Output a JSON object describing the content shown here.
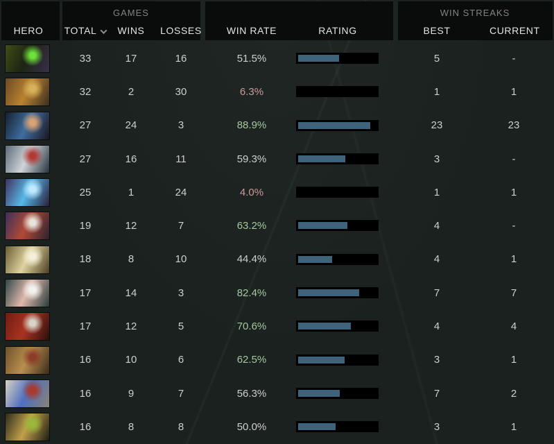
{
  "header": {
    "hero_label": "HERO",
    "games": {
      "group": "GAMES",
      "total": "TOTAL",
      "wins": "WINS",
      "losses": "LOSSES",
      "sort_icon": "caret-down"
    },
    "rate": {
      "win_rate": "WIN RATE",
      "rating": "RATING"
    },
    "streaks": {
      "group": "WIN STREAKS",
      "best": "BEST",
      "current": "CURRENT"
    }
  },
  "colors": {
    "background": "#1a211f",
    "header_block": "#0a0b0b",
    "bar_track": "#000000",
    "bar_fill": "#40637c",
    "win_rate_green": "#a6c89e",
    "win_rate_red": "#cb9b9b",
    "text_neutral": "#cdd0cd"
  },
  "rows": [
    {
      "hero_icon": "hero-portrait-1",
      "total": "33",
      "wins": "17",
      "losses": "16",
      "win_rate": "51.5%",
      "win_rate_tone": "neutral",
      "rating_pct": 52,
      "best": "5",
      "current": "-",
      "portrait": [
        "#3f4d17",
        "#1d2413",
        "#3a2f4a",
        "#6ee03a"
      ]
    },
    {
      "hero_icon": "hero-portrait-2",
      "total": "32",
      "wins": "2",
      "losses": "30",
      "win_rate": "6.3%",
      "win_rate_tone": "red",
      "rating_pct": 0,
      "best": "1",
      "current": "1",
      "portrait": [
        "#6b4a26",
        "#b9822f",
        "#3a2d20",
        "#d8b25a"
      ]
    },
    {
      "hero_icon": "hero-portrait-3",
      "total": "27",
      "wins": "24",
      "losses": "3",
      "win_rate": "88.9%",
      "win_rate_tone": "green",
      "rating_pct": 92,
      "best": "23",
      "current": "23",
      "portrait": [
        "#16202e",
        "#3f6e9e",
        "#1a1420",
        "#d9a273"
      ]
    },
    {
      "hero_icon": "hero-portrait-4",
      "total": "27",
      "wins": "16",
      "losses": "11",
      "win_rate": "59.3%",
      "win_rate_tone": "neutral",
      "rating_pct": 60,
      "best": "3",
      "current": "-",
      "portrait": [
        "#5d6b78",
        "#cfd4d8",
        "#23303c",
        "#b03a36"
      ]
    },
    {
      "hero_icon": "hero-portrait-5",
      "total": "25",
      "wins": "1",
      "losses": "24",
      "win_rate": "4.0%",
      "win_rate_tone": "red",
      "rating_pct": 0,
      "best": "1",
      "current": "1",
      "portrait": [
        "#40325e",
        "#57b8e8",
        "#2a1c38",
        "#bfeaff"
      ]
    },
    {
      "hero_icon": "hero-portrait-6",
      "total": "19",
      "wins": "12",
      "losses": "7",
      "win_rate": "63.2%",
      "win_rate_tone": "green",
      "rating_pct": 63,
      "best": "4",
      "current": "-",
      "portrait": [
        "#3c2f5a",
        "#b14a36",
        "#2a2030",
        "#e8e4da"
      ]
    },
    {
      "hero_icon": "hero-portrait-7",
      "total": "18",
      "wins": "8",
      "losses": "10",
      "win_rate": "44.4%",
      "win_rate_tone": "neutral",
      "rating_pct": 43,
      "best": "4",
      "current": "1",
      "portrait": [
        "#6b5d33",
        "#e0d3a0",
        "#4a3d22",
        "#f5efd8"
      ]
    },
    {
      "hero_icon": "hero-portrait-8",
      "total": "17",
      "wins": "14",
      "losses": "3",
      "win_rate": "82.4%",
      "win_rate_tone": "green",
      "rating_pct": 78,
      "best": "7",
      "current": "7",
      "portrait": [
        "#2f4748",
        "#e0b9ad",
        "#263a3a",
        "#f2f2ee"
      ]
    },
    {
      "hero_icon": "hero-portrait-9",
      "total": "17",
      "wins": "12",
      "losses": "5",
      "win_rate": "70.6%",
      "win_rate_tone": "green",
      "rating_pct": 67,
      "best": "4",
      "current": "4",
      "portrait": [
        "#6e1d12",
        "#a93322",
        "#2a0f0c",
        "#d8d4c8"
      ]
    },
    {
      "hero_icon": "hero-portrait-10",
      "total": "16",
      "wins": "10",
      "losses": "6",
      "win_rate": "62.5%",
      "win_rate_tone": "green",
      "rating_pct": 59,
      "best": "3",
      "current": "1",
      "portrait": [
        "#6e522c",
        "#b98f4e",
        "#3a2a18",
        "#8a3c28"
      ]
    },
    {
      "hero_icon": "hero-portrait-11",
      "total": "16",
      "wins": "9",
      "losses": "7",
      "win_rate": "56.3%",
      "win_rate_tone": "neutral",
      "rating_pct": 53,
      "best": "7",
      "current": "2",
      "portrait": [
        "#d8d2c2",
        "#4f6fc0",
        "#8a8274",
        "#a93a2a"
      ]
    },
    {
      "hero_icon": "hero-portrait-12",
      "total": "16",
      "wins": "8",
      "losses": "8",
      "win_rate": "50.0%",
      "win_rate_tone": "neutral",
      "rating_pct": 48,
      "best": "3",
      "current": "1",
      "portrait": [
        "#2e2c1e",
        "#c0a04a",
        "#1c1c12",
        "#9ab83a"
      ]
    }
  ]
}
